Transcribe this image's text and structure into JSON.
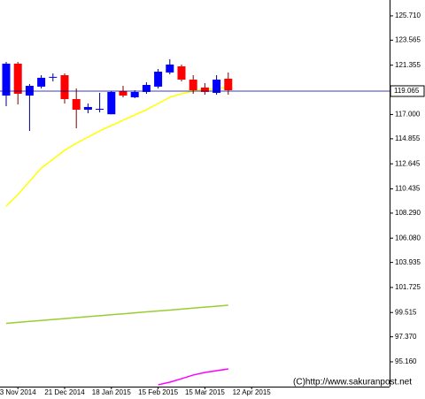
{
  "chart_data": {
    "type": "candlestick",
    "categories": [
      null,
      "3 Nov 2014",
      null,
      null,
      null,
      "21 Dec 2014",
      null,
      null,
      null,
      "18 Jan 2015",
      null,
      null,
      null,
      "15 Feb 2015",
      null,
      null,
      null,
      "15 Mar 2015",
      null,
      null,
      null,
      "12 Apr 2015"
    ],
    "candles": {
      "up_color": "#0000ff",
      "down_color": "#ff0000",
      "open": [
        118.67,
        121.49,
        118.67,
        119.46,
        120.32,
        120.47,
        118.36,
        117.42,
        117.5,
        117.02,
        119.07,
        118.52,
        118.99,
        119.46,
        120.71,
        121.25,
        120.08,
        119.38,
        118.91,
        120.16,
        null,
        null
      ],
      "high": [
        121.64,
        121.64,
        119.69,
        120.47,
        120.63,
        120.63,
        119.3,
        117.97,
        118.91,
        119.07,
        119.53,
        119.14,
        119.85,
        121.02,
        121.88,
        121.41,
        120.47,
        119.77,
        120.47,
        120.71,
        null,
        null
      ],
      "low": [
        117.74,
        117.89,
        115.55,
        119.3,
        119.92,
        117.97,
        115.78,
        117.11,
        117.19,
        117.02,
        118.52,
        118.44,
        118.83,
        119.3,
        120.55,
        119.92,
        118.83,
        118.75,
        118.75,
        118.75,
        null,
        null
      ],
      "close": [
        121.49,
        118.83,
        119.53,
        120.24,
        120.32,
        118.36,
        117.42,
        117.66,
        117.5,
        118.99,
        118.67,
        118.99,
        119.61,
        120.78,
        121.41,
        120.08,
        119.14,
        118.99,
        120.08,
        119.14,
        null,
        null
      ]
    },
    "lines": [
      {
        "color": "#ffff00",
        "values": [
          108.91,
          109.92,
          111.1,
          112.27,
          113.05,
          113.84,
          114.46,
          115.0,
          115.55,
          116.02,
          116.49,
          116.96,
          117.42,
          117.97,
          118.52,
          118.83,
          119.07,
          119.22,
          119.3,
          119.38,
          null,
          null
        ]
      },
      {
        "color": "#9acd32",
        "values": [
          98.56,
          98.64,
          98.73,
          98.81,
          98.9,
          98.98,
          99.06,
          99.15,
          99.23,
          99.32,
          99.4,
          99.48,
          99.57,
          99.65,
          99.73,
          99.82,
          99.9,
          99.99,
          100.07,
          100.16,
          null,
          null
        ]
      },
      {
        "color": "#ff00ff",
        "values": [
          null,
          null,
          null,
          null,
          null,
          null,
          null,
          null,
          null,
          null,
          null,
          null,
          null,
          93.13,
          93.36,
          93.67,
          93.99,
          94.22,
          94.38,
          94.53,
          null,
          null
        ]
      }
    ],
    "last_price": {
      "value": 119.065,
      "label": "119.065"
    },
    "ylim": [
      92.97,
      127.11
    ],
    "yticks": [
      {
        "value": 125.71,
        "label": "125.710"
      },
      {
        "value": 123.565,
        "label": "123.565"
      },
      {
        "value": 121.355,
        "label": "121.355"
      },
      {
        "value": 117,
        "label": "117.000"
      },
      {
        "value": 114.855,
        "label": "114.855"
      },
      {
        "value": 112.645,
        "label": "112.645"
      },
      {
        "value": 110.435,
        "label": "110.435"
      },
      {
        "value": 108.29,
        "label": "108.290"
      },
      {
        "value": 106.08,
        "label": "106.080"
      },
      {
        "value": 103.935,
        "label": "103.935"
      },
      {
        "value": 101.725,
        "label": "101.725"
      },
      {
        "value": 99.515,
        "label": "99.515"
      },
      {
        "value": 97.37,
        "label": "97.370"
      },
      {
        "value": 95.16,
        "label": "95.160"
      }
    ],
    "watermark": "(C)http://www.sakuranpost.net"
  }
}
